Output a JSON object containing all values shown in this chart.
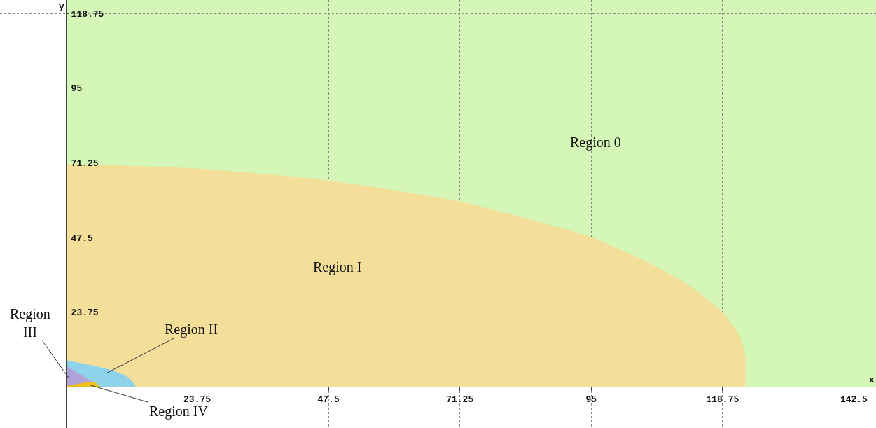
{
  "chart_data": {
    "type": "area",
    "xlabel": "x",
    "ylabel": "y",
    "xlim": [
      -11.9,
      146.5
    ],
    "ylim": [
      -13.1,
      123
    ],
    "xticks": [
      23.75,
      47.5,
      71.25,
      95,
      118.75,
      142.5
    ],
    "yticks": [
      23.75,
      47.5,
      71.25,
      95,
      118.75
    ],
    "grid": true,
    "bands": [
      {
        "axis": "x",
        "from": 0,
        "to": 146.5,
        "color": "#d4f7b8"
      }
    ],
    "series": [
      {
        "color": "#f3df9a",
        "x": [
          0,
          23.75,
          47.5,
          64.1,
          71.25,
          81.0,
          95,
          104.2,
          111.8,
          118.6,
          121.9,
          123.0,
          122.8
        ],
        "values": [
          70.7,
          69.3,
          65.5,
          61.0,
          58.8,
          54.5,
          47.4,
          40.3,
          33.1,
          23.8,
          15.6,
          7.3,
          0
        ]
      },
      {
        "color": "#8ed3ea",
        "x": [
          0,
          4.1,
          8.4,
          11.3,
          12.6
        ],
        "values": [
          8.4,
          6.9,
          5.1,
          2.8,
          0
        ]
      },
      {
        "color": "#b1a2d8",
        "x": [
          0,
          6.2
        ],
        "values": [
          6.6,
          0
        ]
      },
      {
        "color": "#f0c020",
        "x": [
          0,
          2.5,
          5.0,
          6.2
        ],
        "values": [
          0,
          0.9,
          1.5,
          0
        ]
      }
    ],
    "annotations": [
      "Region 0",
      "Region I",
      "Region II",
      {
        "text": "Region\nIII",
        "x": 0.5,
        "y": 2.8
      },
      {
        "text": "Region IV",
        "x": 4.3,
        "y": 0.6
      }
    ]
  }
}
